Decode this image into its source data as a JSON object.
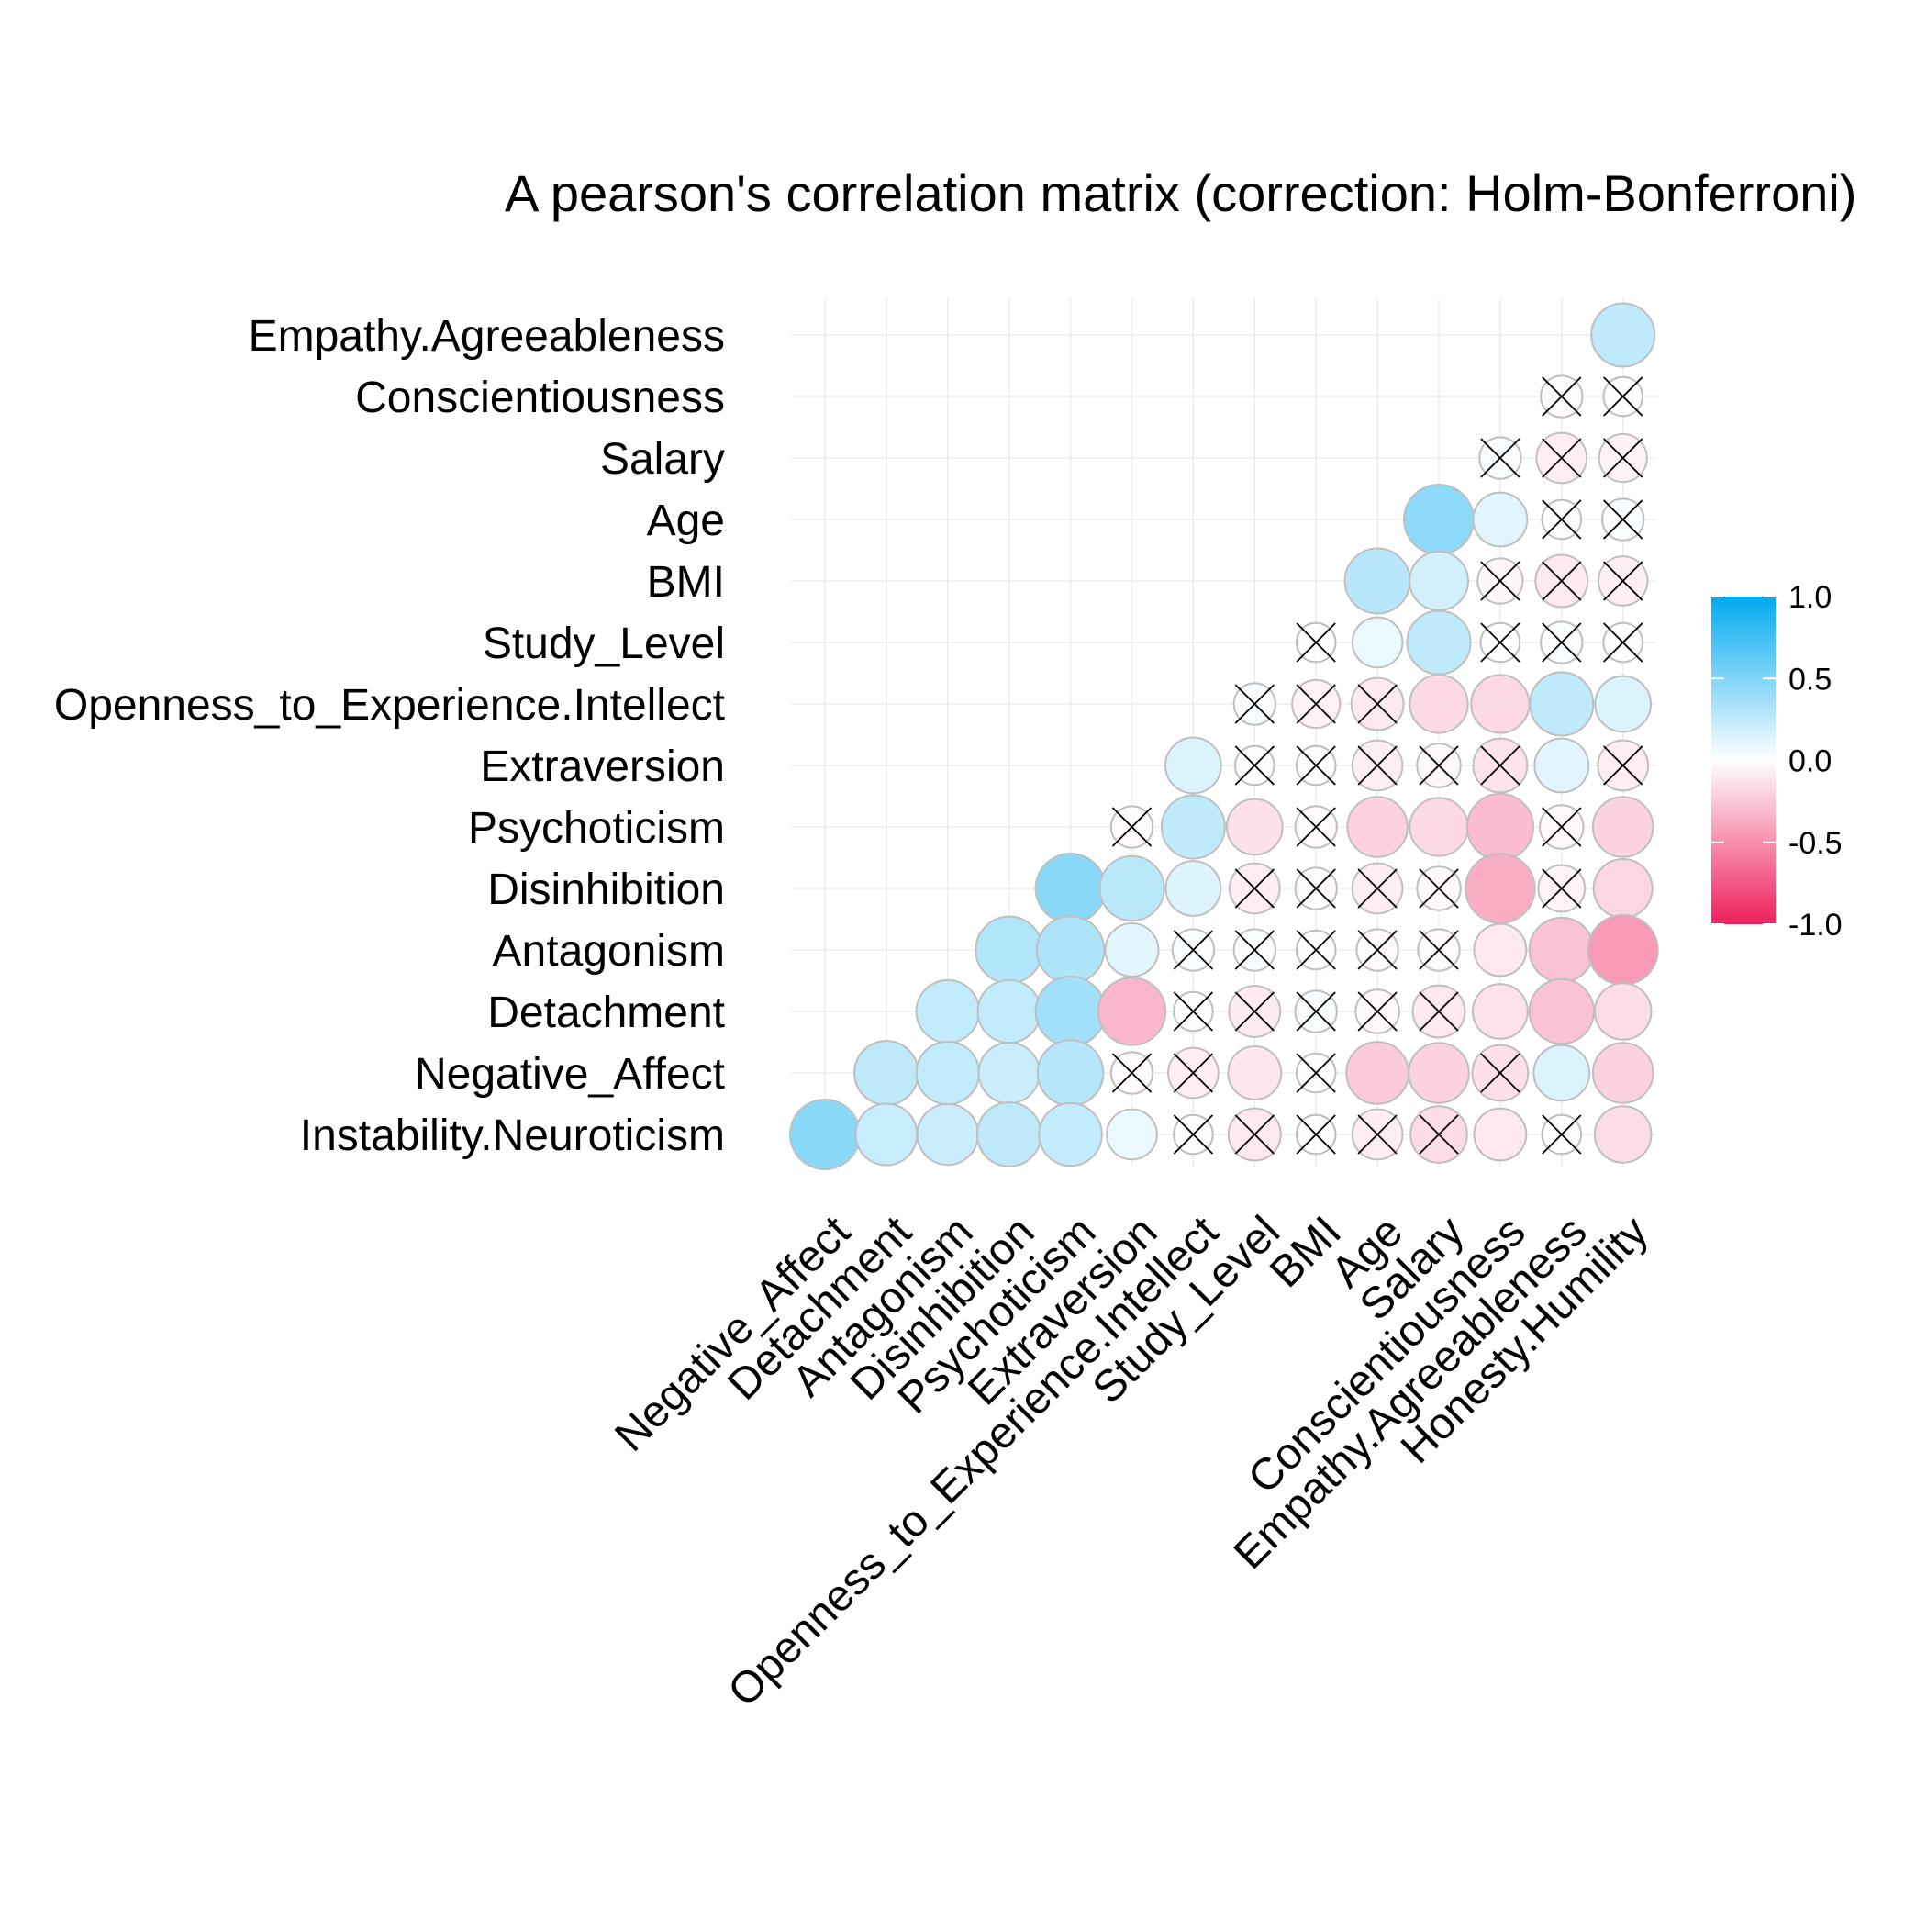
{
  "chart_data": {
    "type": "heatmap",
    "title": "A pearson's correlation matrix (correction: Holm-Bonferroni)",
    "rows": [
      "Empathy.Agreeableness",
      "Conscientiousness",
      "Salary",
      "Age",
      "BMI",
      "Study_Level",
      "Openness_to_Experience.Intellect",
      "Extraversion",
      "Psychoticism",
      "Disinhibition",
      "Antagonism",
      "Detachment",
      "Negative_Affect",
      "Instability.Neuroticism"
    ],
    "columns": [
      "Negative_Affect",
      "Detachment",
      "Antagonism",
      "Disinhibition",
      "Psychoticism",
      "Extraversion",
      "Openness_to_Experience.Intellect",
      "Study_Level",
      "BMI",
      "Age",
      "Salary",
      "Conscientiousness",
      "Empathy.Agreeableness",
      "Honesty.Humility"
    ],
    "values": [
      [
        null,
        null,
        null,
        null,
        null,
        null,
        null,
        null,
        null,
        null,
        null,
        null,
        null,
        0.25
      ],
      [
        null,
        null,
        null,
        null,
        null,
        null,
        null,
        null,
        null,
        null,
        null,
        null,
        -0.02,
        0.01
      ],
      [
        null,
        null,
        null,
        null,
        null,
        null,
        null,
        null,
        null,
        null,
        null,
        0.02,
        -0.08,
        -0.06
      ],
      [
        null,
        null,
        null,
        null,
        null,
        null,
        null,
        null,
        null,
        null,
        0.45,
        0.12,
        0.01,
        0.02
      ],
      [
        null,
        null,
        null,
        null,
        null,
        null,
        null,
        null,
        null,
        0.28,
        0.18,
        -0.04,
        -0.1,
        -0.07
      ],
      [
        null,
        null,
        null,
        null,
        null,
        null,
        null,
        null,
        0.01,
        0.08,
        0.25,
        0.01,
        0.02,
        0.01
      ],
      [
        null,
        null,
        null,
        null,
        null,
        null,
        null,
        0.02,
        -0.06,
        -0.1,
        -0.17,
        -0.17,
        0.25,
        0.14
      ],
      [
        null,
        null,
        null,
        null,
        null,
        null,
        0.14,
        0.01,
        0.01,
        -0.08,
        -0.03,
        -0.12,
        0.12,
        -0.08
      ],
      [
        null,
        null,
        null,
        null,
        null,
        -0.02,
        0.25,
        -0.14,
        -0.02,
        -0.2,
        -0.17,
        -0.3,
        -0.03,
        -0.2
      ],
      [
        null,
        null,
        null,
        null,
        0.46,
        0.27,
        0.13,
        -0.08,
        -0.02,
        -0.08,
        -0.03,
        -0.36,
        -0.05,
        -0.18
      ],
      [
        null,
        null,
        null,
        0.31,
        0.32,
        0.11,
        0.02,
        0.02,
        -0.01,
        -0.02,
        -0.02,
        -0.1,
        -0.27,
        -0.45
      ],
      [
        null,
        null,
        0.24,
        0.24,
        0.37,
        -0.32,
        0.01,
        -0.09,
        0.02,
        -0.03,
        -0.1,
        -0.13,
        -0.27,
        -0.15
      ],
      [
        null,
        0.26,
        0.24,
        0.21,
        0.29,
        -0.02,
        -0.08,
        -0.11,
        0.01,
        -0.23,
        -0.2,
        -0.14,
        0.14,
        -0.2
      ],
      [
        0.46,
        0.22,
        0.21,
        0.26,
        0.24,
        0.08,
        0.01,
        -0.1,
        0.01,
        -0.08,
        -0.15,
        -0.1,
        -0.01,
        -0.15
      ]
    ],
    "nonsignificant": [
      [
        false,
        false,
        false,
        false,
        false,
        false,
        false,
        false,
        false,
        false,
        false,
        false,
        false,
        false
      ],
      [
        false,
        false,
        false,
        false,
        false,
        false,
        false,
        false,
        false,
        false,
        false,
        false,
        true,
        true
      ],
      [
        false,
        false,
        false,
        false,
        false,
        false,
        false,
        false,
        false,
        false,
        false,
        true,
        true,
        true
      ],
      [
        false,
        false,
        false,
        false,
        false,
        false,
        false,
        false,
        false,
        false,
        false,
        false,
        true,
        true
      ],
      [
        false,
        false,
        false,
        false,
        false,
        false,
        false,
        false,
        false,
        false,
        false,
        true,
        true,
        true
      ],
      [
        false,
        false,
        false,
        false,
        false,
        false,
        false,
        false,
        true,
        false,
        false,
        true,
        true,
        true
      ],
      [
        false,
        false,
        false,
        false,
        false,
        false,
        false,
        true,
        true,
        true,
        false,
        false,
        false,
        false
      ],
      [
        false,
        false,
        false,
        false,
        false,
        false,
        false,
        true,
        true,
        true,
        true,
        true,
        false,
        true
      ],
      [
        false,
        false,
        false,
        false,
        false,
        true,
        false,
        false,
        true,
        false,
        false,
        false,
        true,
        false
      ],
      [
        false,
        false,
        false,
        false,
        false,
        false,
        false,
        true,
        true,
        true,
        true,
        false,
        true,
        false
      ],
      [
        false,
        false,
        false,
        false,
        false,
        false,
        true,
        true,
        true,
        true,
        true,
        false,
        false,
        false
      ],
      [
        false,
        false,
        false,
        false,
        false,
        false,
        true,
        true,
        true,
        true,
        true,
        false,
        false,
        false
      ],
      [
        false,
        false,
        false,
        false,
        false,
        true,
        true,
        false,
        true,
        false,
        false,
        true,
        false,
        false
      ],
      [
        false,
        false,
        false,
        false,
        false,
        false,
        true,
        true,
        true,
        true,
        true,
        false,
        true,
        false
      ]
    ],
    "legend": {
      "ticks": [
        1.0,
        0.5,
        0.0,
        -0.5,
        -1.0
      ],
      "tick_labels": [
        "1.0",
        "0.5",
        "0.0",
        "-0.5",
        "-1.0"
      ],
      "range": [
        -1,
        1
      ],
      "colors": {
        "high": "#00aaf0",
        "mid": "#ffffff",
        "low": "#ee1f5c"
      },
      "placement": "right"
    },
    "grid": true,
    "marker": "circle, area scaled by |r|; cross marks non-significant correlations"
  }
}
